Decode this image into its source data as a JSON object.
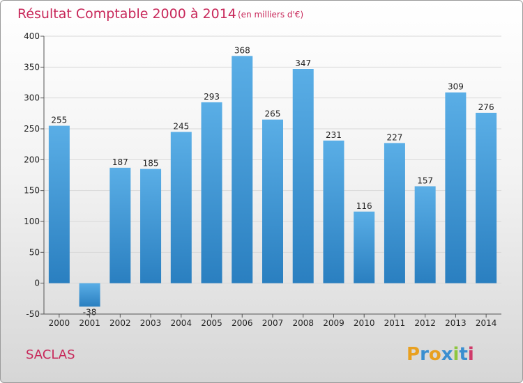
{
  "chart_data": {
    "type": "bar",
    "title": "Résultat Comptable 2000 à 2014",
    "subtitle": "(en milliers d'€)",
    "categories": [
      "2000",
      "2001",
      "2002",
      "2003",
      "2004",
      "2005",
      "2006",
      "2007",
      "2008",
      "2009",
      "2010",
      "2011",
      "2012",
      "2013",
      "2014"
    ],
    "values": [
      255,
      -38,
      187,
      185,
      245,
      293,
      368,
      265,
      347,
      231,
      116,
      227,
      157,
      309,
      276
    ],
    "ylim": [
      -50,
      400
    ],
    "yticks": [
      -50,
      0,
      50,
      100,
      150,
      200,
      250,
      300,
      350,
      400
    ],
    "xlabel": "",
    "ylabel": "",
    "grid": true,
    "colors": {
      "bar_top": "#5aaee6",
      "bar_bottom": "#2a7fc0",
      "title": "#c8285a"
    }
  },
  "footer": {
    "town": "SACLAS",
    "logo_letters": [
      "P",
      "r",
      "o",
      "x",
      "i",
      "t",
      "i"
    ],
    "logo_colors": [
      "#e8a020",
      "#3a8fd0",
      "#e8a020",
      "#3a8fd0",
      "#8dc63f",
      "#3a8fd0",
      "#d03a6a"
    ]
  }
}
